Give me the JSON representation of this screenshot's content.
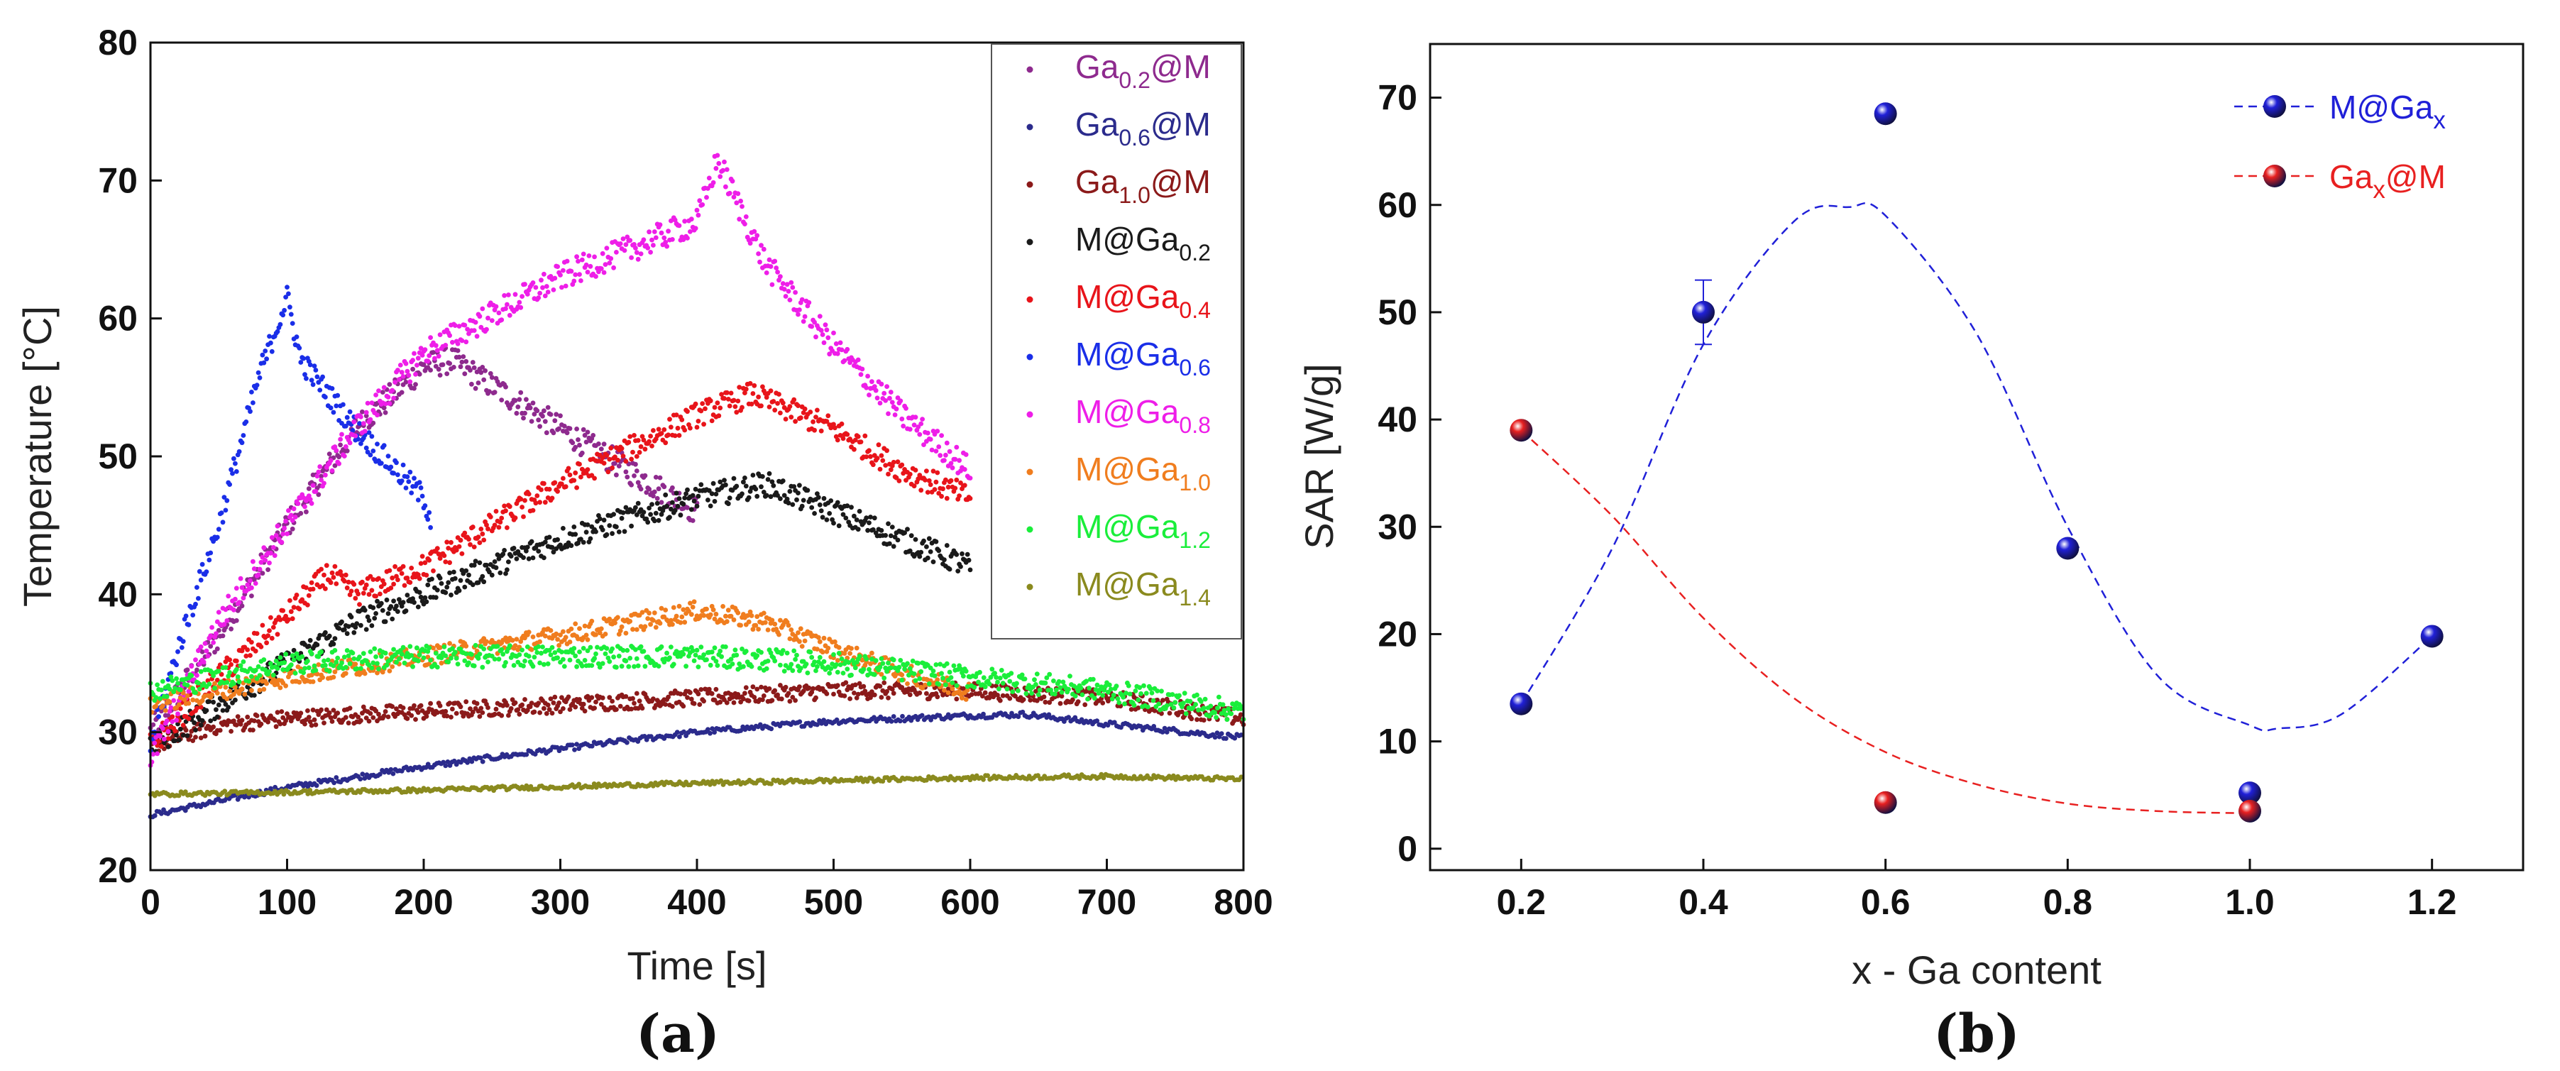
{
  "chart_data": [
    {
      "type": "scatter",
      "panel_label": "(a)",
      "xlabel": "Time [s]",
      "ylabel": "Temperature [°C]",
      "xlim": [
        0,
        800
      ],
      "ylim": [
        20,
        80
      ],
      "xticks": [
        0,
        100,
        200,
        300,
        400,
        500,
        600,
        700,
        800
      ],
      "yticks": [
        20,
        30,
        40,
        50,
        60,
        70,
        80
      ],
      "legend_position": "top-right",
      "series": [
        {
          "name": "Ga0.2@M",
          "label_base": "Ga",
          "label_sub": "0.2",
          "label_rest": "@M",
          "color": "#8e2a8e",
          "noise": 1.0,
          "points": [
            [
              0,
              30
            ],
            [
              50,
              37
            ],
            [
              100,
              45
            ],
            [
              150,
              52
            ],
            [
              200,
              56.5
            ],
            [
              220,
              57
            ],
            [
              300,
              52
            ],
            [
              350,
              49
            ],
            [
              400,
              46
            ]
          ]
        },
        {
          "name": "Ga0.6@M",
          "label_base": "Ga",
          "label_sub": "0.6",
          "label_rest": "@M",
          "color": "#2b2b8c",
          "noise": 0.2,
          "points": [
            [
              0,
              24
            ],
            [
              100,
              26
            ],
            [
              200,
              27.5
            ],
            [
              300,
              28.8
            ],
            [
              400,
              30
            ],
            [
              500,
              30.8
            ],
            [
              600,
              31.2
            ],
            [
              640,
              31.3
            ],
            [
              700,
              30.6
            ],
            [
              800,
              29.6
            ]
          ]
        },
        {
          "name": "Ga1.0@M",
          "label_base": "Ga",
          "label_sub": "1.0",
          "label_rest": "@M",
          "color": "#8b1a1a",
          "noise": 0.6,
          "points": [
            [
              0,
              29
            ],
            [
              50,
              30.5
            ],
            [
              100,
              31
            ],
            [
              200,
              31.5
            ],
            [
              300,
              32
            ],
            [
              400,
              32.5
            ],
            [
              500,
              33
            ],
            [
              600,
              33
            ],
            [
              700,
              32.5
            ],
            [
              800,
              31
            ]
          ]
        },
        {
          "name": "M@Ga0.2",
          "label_base": "M@Ga",
          "label_sub": "0.2",
          "label_rest": "",
          "color": "#1a1a1a",
          "noise": 0.9,
          "points": [
            [
              0,
              29
            ],
            [
              50,
              32
            ],
            [
              100,
              35
            ],
            [
              150,
              38
            ],
            [
              200,
              40
            ],
            [
              300,
              44
            ],
            [
              400,
              47
            ],
            [
              450,
              48
            ],
            [
              500,
              46
            ],
            [
              550,
              44
            ],
            [
              600,
              42
            ]
          ]
        },
        {
          "name": "M@Ga0.4",
          "label_base": "M@Ga",
          "label_sub": "0.4",
          "label_rest": "",
          "color": "#e8141a",
          "noise": 0.9,
          "points": [
            [
              0,
              29
            ],
            [
              50,
              34
            ],
            [
              100,
              38.5
            ],
            [
              130,
              41.5
            ],
            [
              150,
              40
            ],
            [
              200,
              42
            ],
            [
              300,
              48
            ],
            [
              400,
              53
            ],
            [
              440,
              54.5
            ],
            [
              500,
              52
            ],
            [
              550,
              49
            ],
            [
              600,
              47
            ]
          ]
        },
        {
          "name": "M@Ga0.6",
          "label_base": "M@Ga",
          "label_sub": "0.6",
          "label_rest": "",
          "color": "#1a2ee8",
          "noise": 0.9,
          "points": [
            [
              0,
              29
            ],
            [
              20,
              36
            ],
            [
              50,
              45
            ],
            [
              80,
              56
            ],
            [
              100,
              61.5
            ],
            [
              110,
              57
            ],
            [
              150,
              52
            ],
            [
              200,
              47
            ],
            [
              205,
              45.5
            ]
          ]
        },
        {
          "name": "M@Ga0.8",
          "label_base": "M@Ga",
          "label_sub": "0.8",
          "label_rest": "",
          "color": "#ee1ee8",
          "noise": 1.0,
          "points": [
            [
              0,
              28
            ],
            [
              50,
              38
            ],
            [
              100,
              45
            ],
            [
              150,
              52
            ],
            [
              200,
              57.5
            ],
            [
              300,
              63
            ],
            [
              400,
              67
            ],
            [
              415,
              71.5
            ],
            [
              450,
              64
            ],
            [
              500,
              58
            ],
            [
              550,
              53
            ],
            [
              600,
              49
            ]
          ]
        },
        {
          "name": "M@Ga1.0",
          "label_base": "M@Ga",
          "label_sub": "1.0",
          "label_rest": "",
          "color": "#f07d1e",
          "noise": 0.7,
          "points": [
            [
              0,
              32
            ],
            [
              100,
              34
            ],
            [
              200,
              35.5
            ],
            [
              300,
              37
            ],
            [
              400,
              38.8
            ],
            [
              450,
              38
            ],
            [
              500,
              36
            ],
            [
              560,
              34
            ],
            [
              600,
              33
            ]
          ]
        },
        {
          "name": "M@Ga1.2",
          "label_base": "M@Ga",
          "label_sub": "1.2",
          "label_rest": "",
          "color": "#1aee3a",
          "noise": 0.8,
          "points": [
            [
              0,
              33
            ],
            [
              100,
              35
            ],
            [
              200,
              35.5
            ],
            [
              300,
              35.5
            ],
            [
              400,
              35.5
            ],
            [
              500,
              35
            ],
            [
              600,
              34
            ],
            [
              700,
              33
            ],
            [
              800,
              31.5
            ]
          ]
        },
        {
          "name": "M@Ga1.4",
          "label_base": "M@Ga",
          "label_sub": "1.4",
          "label_rest": "",
          "color": "#8a8a1e",
          "noise": 0.15,
          "points": [
            [
              0,
              25.5
            ],
            [
              200,
              25.8
            ],
            [
              400,
              26.3
            ],
            [
              600,
              26.7
            ],
            [
              700,
              26.8
            ],
            [
              800,
              26.6
            ]
          ]
        }
      ]
    },
    {
      "type": "scatter",
      "panel_label": "(b)",
      "xlabel": "x - Ga content",
      "ylabel": "SAR [W/g]",
      "xlim": [
        0.1,
        1.3
      ],
      "ylim": [
        -2,
        75
      ],
      "xticks": [
        0.2,
        0.4,
        0.6,
        0.8,
        1.0,
        1.2
      ],
      "xtick_labels": [
        "0.2",
        "0.4",
        "0.6",
        "0.8",
        "1.0",
        "1.2"
      ],
      "yticks": [
        0,
        10,
        20,
        30,
        40,
        50,
        60,
        70
      ],
      "legend_position": "top-right",
      "series": [
        {
          "name": "M@Gax",
          "label_base": "M@Ga",
          "label_sub": "x",
          "label_rest": "",
          "color": "#2020d8",
          "x": [
            0.2,
            0.4,
            0.6,
            0.8,
            1.0,
            1.2
          ],
          "y": [
            13.5,
            50,
            68.5,
            28,
            5.2,
            19.8
          ],
          "error_bars": [
            {
              "x": 0.4,
              "y": 50,
              "err": 3
            }
          ],
          "fit_x": [
            0.2,
            0.3,
            0.4,
            0.5,
            0.56,
            0.6,
            0.7,
            0.8,
            0.9,
            1.0,
            1.03,
            1.1,
            1.2
          ],
          "fit_y": [
            13.5,
            28,
            47,
            58.5,
            59.8,
            59,
            48,
            30,
            16,
            11.5,
            11.2,
            12.5,
            19.8
          ]
        },
        {
          "name": "Gax@M",
          "label_base": "Ga",
          "label_sub": "x",
          "label_rest": "@M",
          "color": "#e82020",
          "x": [
            0.2,
            0.6,
            1.0
          ],
          "y": [
            39,
            4.3,
            3.5
          ],
          "fit_x": [
            0.2,
            0.3,
            0.4,
            0.5,
            0.6,
            0.7,
            0.8,
            0.9,
            1.0
          ],
          "fit_y": [
            39,
            31,
            21.5,
            14,
            9,
            6,
            4.2,
            3.5,
            3.3
          ]
        }
      ]
    }
  ]
}
